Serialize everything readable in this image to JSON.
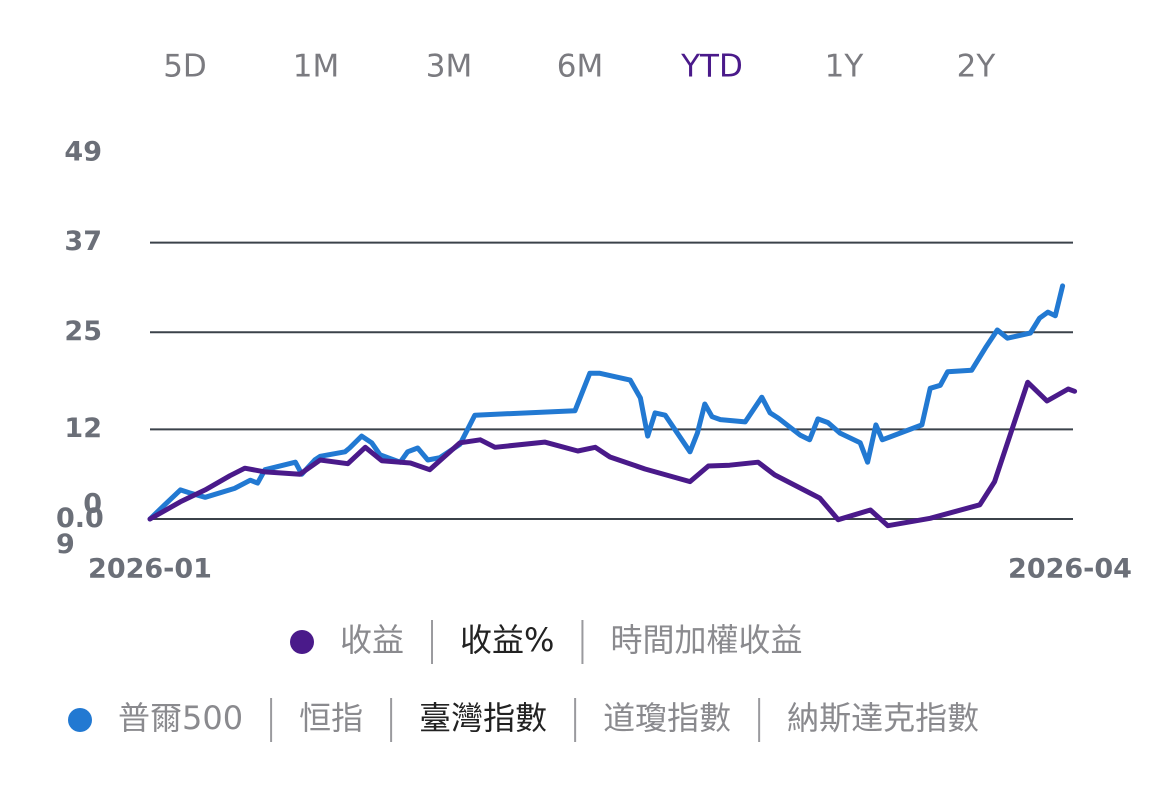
{
  "tabs": [
    "5D",
    "1M",
    "3M",
    "6M",
    "YTD",
    "1Y",
    "2Y"
  ],
  "selected_tab": 4,
  "chart_data": {
    "type": "line",
    "ylim": [
      0,
      49
    ],
    "yticks": [
      0,
      12,
      25,
      37,
      49
    ],
    "min_label": "0.09",
    "xlim": [
      0,
      100
    ],
    "xticks": [
      {
        "value": 0,
        "label": "2026-01"
      },
      {
        "value": 100,
        "label": "2026-04"
      }
    ],
    "grid": true,
    "series": [
      {
        "color": "#4a1a8a",
        "x": [
          0,
          3.3,
          6.0,
          8.7,
          10.3,
          12.5,
          16.3,
          18.5,
          21.5,
          23.4,
          25.2,
          28.3,
          30.4,
          33.7,
          35.9,
          37.5,
          42.9,
          46.5,
          48.4,
          50.0,
          53.8,
          58.7,
          60.7,
          63.0,
          66.1,
          67.9,
          72.8,
          74.8,
          78.3,
          80.2,
          84.8,
          90.2,
          91.8,
          95.4,
          97.5,
          99.8,
          100.5
        ],
        "values": [
          0,
          2.3,
          3.9,
          5.8,
          6.8,
          6.3,
          6.0,
          7.9,
          7.4,
          9.6,
          7.8,
          7.5,
          6.6,
          10.2,
          10.6,
          9.6,
          10.3,
          9.1,
          9.6,
          8.3,
          6.7,
          5.0,
          7.1,
          7.2,
          7.6,
          5.9,
          2.8,
          -0.1,
          1.2,
          -0.9,
          0.1,
          1.9,
          5.0,
          18.3,
          15.8,
          17.4,
          17.1
        ]
      },
      {
        "color": "#2279d2",
        "x": [
          0,
          1.6,
          3.3,
          4.3,
          6.0,
          9.2,
          10.9,
          11.7,
          12.5,
          15.8,
          16.5,
          17.9,
          18.5,
          21.2,
          21.7,
          23.0,
          24.1,
          25.0,
          27.2,
          28.0,
          29.1,
          30.2,
          31.5,
          33.7,
          35.3,
          46.2,
          47.8,
          48.9,
          52.2,
          53.3,
          54.1,
          54.9,
          56.0,
          58.7,
          59.5,
          60.3,
          61.1,
          62.0,
          64.7,
          66.5,
          67.4,
          68.3,
          70.7,
          71.7,
          72.6,
          73.7,
          75.0,
          77.2,
          78.0,
          78.9,
          79.6,
          83.9,
          84.8,
          85.9,
          86.7,
          89.3,
          90.8,
          92.1,
          93.2,
          95.7,
          96.7,
          97.6,
          98.4,
          99.2
        ],
        "values": [
          0,
          1.9,
          3.9,
          3.5,
          2.9,
          4.1,
          5.2,
          4.8,
          6.6,
          7.6,
          6.0,
          7.9,
          8.4,
          9.0,
          9.5,
          11.1,
          10.2,
          8.6,
          7.6,
          9.0,
          9.5,
          7.9,
          8.2,
          10.0,
          13.9,
          14.5,
          19.5,
          19.5,
          18.6,
          16.2,
          11.1,
          14.2,
          13.9,
          9.0,
          11.5,
          15.4,
          13.7,
          13.3,
          13.0,
          16.3,
          14.2,
          13.5,
          11.2,
          10.6,
          13.4,
          12.9,
          11.5,
          10.2,
          7.6,
          12.6,
          10.6,
          12.6,
          17.5,
          17.9,
          19.7,
          19.9,
          22.9,
          25.3,
          24.2,
          24.9,
          26.9,
          27.7,
          27.2,
          31.2
        ]
      }
    ]
  },
  "legend_rows": [
    {
      "color": "#4a1a8a",
      "items": [
        "收益",
        "收益%",
        "時間加權收益"
      ],
      "selected": 1
    },
    {
      "color": "#2279d2",
      "items": [
        "普爾500",
        "恒指",
        "臺灣指數",
        "道瓊指數",
        "納斯達克指數"
      ],
      "selected": 2
    }
  ]
}
